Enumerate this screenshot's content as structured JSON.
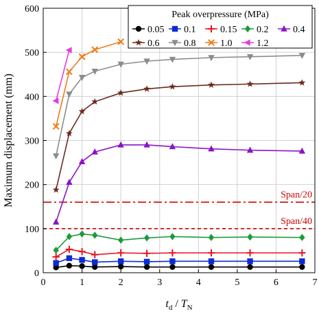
{
  "chart_data": {
    "type": "line",
    "title": "",
    "ylabel": "Maximum displacement (mm)",
    "xlabel_parts": [
      "t",
      "d",
      " / ",
      "T",
      "N"
    ],
    "xlim": [
      0,
      7
    ],
    "ylim": [
      0,
      600
    ],
    "xticks": [
      0,
      1,
      2,
      3,
      4,
      5,
      6,
      7
    ],
    "yticks": [
      0,
      100,
      200,
      300,
      400,
      500,
      600
    ],
    "grid": true,
    "legend": {
      "title": "Peak overpressure (MPa)",
      "placement": "top-right",
      "columns": 5
    },
    "series": [
      {
        "name": "0.05",
        "color": "#000000",
        "marker": "circle",
        "x": [
          0.33,
          0.67,
          1.0,
          1.33,
          2.0,
          2.67,
          3.33,
          4.33,
          5.33,
          6.67
        ],
        "y": [
          12,
          16,
          15,
          13,
          14,
          13,
          13,
          13,
          13,
          13
        ]
      },
      {
        "name": "0.1",
        "color": "#0a2bd6",
        "marker": "square",
        "x": [
          0.33,
          0.67,
          1.0,
          1.33,
          2.0,
          2.67,
          3.33,
          4.33,
          5.33,
          6.67
        ],
        "y": [
          22,
          33,
          29,
          24,
          26,
          25,
          26,
          26,
          26,
          26
        ]
      },
      {
        "name": "0.15",
        "color": "#e8141d",
        "marker": "plus",
        "x": [
          0.33,
          0.67,
          1.0,
          1.33,
          2.0,
          2.67,
          3.33,
          4.33,
          5.33,
          6.67
        ],
        "y": [
          36,
          53,
          48,
          41,
          45,
          44,
          45,
          45,
          45,
          45
        ]
      },
      {
        "name": "0.2",
        "color": "#1e9a3c",
        "marker": "diamond",
        "x": [
          0.33,
          0.67,
          1.0,
          1.33,
          2.0,
          2.67,
          3.33,
          4.33,
          5.33,
          6.67
        ],
        "y": [
          51,
          82,
          88,
          85,
          74,
          79,
          82,
          80,
          81,
          80
        ]
      },
      {
        "name": "0.4",
        "color": "#8a14c7",
        "marker": "triangle-up",
        "x": [
          0.33,
          0.67,
          1.0,
          1.33,
          2.0,
          2.67,
          3.33,
          4.33,
          5.33,
          6.67
        ],
        "y": [
          115,
          205,
          252,
          274,
          290,
          290,
          286,
          281,
          278,
          276
        ]
      },
      {
        "name": "0.6",
        "color": "#6b2a1e",
        "marker": "star",
        "x": [
          0.33,
          0.67,
          1.0,
          1.33,
          2.0,
          2.67,
          3.33,
          4.33,
          5.33,
          6.67
        ],
        "y": [
          188,
          316,
          366,
          388,
          408,
          417,
          422,
          426,
          428,
          431
        ]
      },
      {
        "name": "0.8",
        "color": "#8c8c8c",
        "marker": "triangle-down",
        "x": [
          0.33,
          0.67,
          1.0,
          1.33,
          2.0,
          2.67,
          3.33,
          4.33,
          5.33,
          6.67
        ],
        "y": [
          265,
          405,
          443,
          457,
          473,
          480,
          484,
          488,
          490,
          493
        ]
      },
      {
        "name": "1.0",
        "color": "#f07a16",
        "marker": "x",
        "x": [
          0.33,
          0.67,
          1.0,
          1.33,
          2.0
        ],
        "y": [
          332,
          456,
          490,
          506,
          524
        ]
      },
      {
        "name": "1.2",
        "color": "#e63ae0",
        "marker": "triangle-left",
        "x": [
          0.33,
          0.67
        ],
        "y": [
          390,
          505
        ]
      }
    ],
    "reference_lines": [
      {
        "label": "Span/20",
        "y": 160,
        "color": "#cc0000",
        "style": "dashdot"
      },
      {
        "label": "Span/40",
        "y": 100,
        "color": "#cc0000",
        "style": "dashed"
      }
    ]
  }
}
